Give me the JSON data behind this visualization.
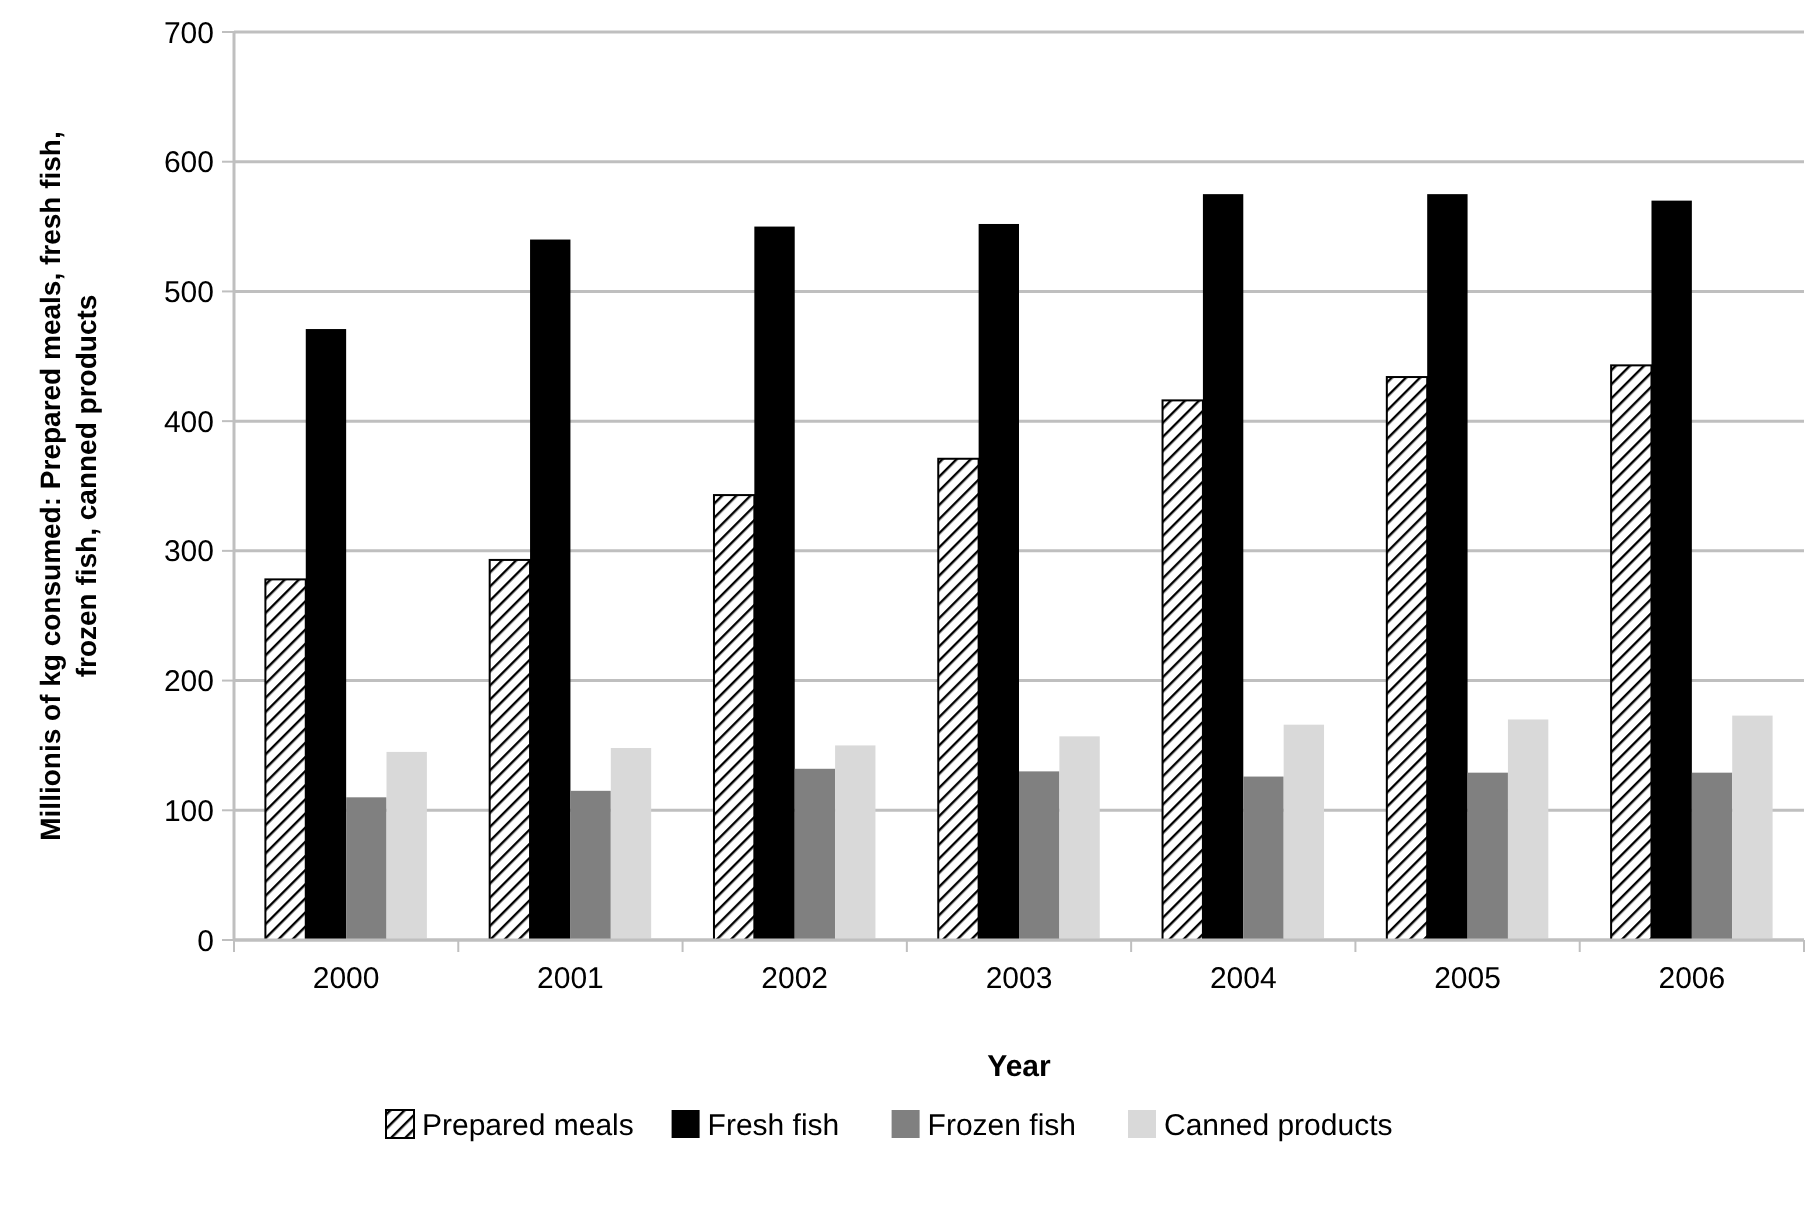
{
  "chart_data": {
    "type": "bar",
    "xlabel": "Year",
    "ylabel": "Millionis of kg consumed: Prepared meals, fresh fish, frozen fish, canned products",
    "categories": [
      "2000",
      "2001",
      "2002",
      "2003",
      "2004",
      "2005",
      "2006"
    ],
    "series": [
      {
        "name": "Prepared meals",
        "color": "#000000",
        "values": [
          278,
          293,
          343,
          371,
          416,
          434,
          443
        ]
      },
      {
        "name": "Fresh fish",
        "color": "#000000",
        "values": [
          471,
          540,
          550,
          552,
          575,
          575,
          570
        ]
      },
      {
        "name": "Frozen fish",
        "color": "#808080",
        "values": [
          110,
          115,
          132,
          130,
          126,
          129,
          129
        ]
      },
      {
        "name": "Canned products",
        "color": "#d9d9d9",
        "values": [
          145,
          148,
          150,
          157,
          166,
          170,
          173
        ]
      }
    ],
    "ylim": [
      0,
      700
    ],
    "yticks": [
      0,
      100,
      200,
      300,
      400,
      500,
      600,
      700
    ],
    "grid": "y",
    "legend": "bottom"
  }
}
